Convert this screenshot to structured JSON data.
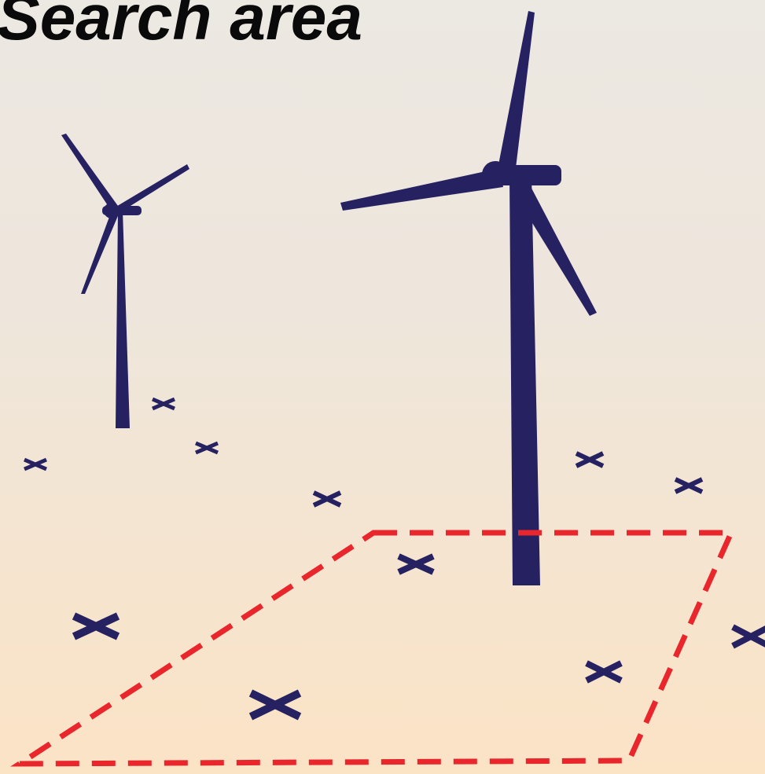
{
  "title": "Search area"
}
